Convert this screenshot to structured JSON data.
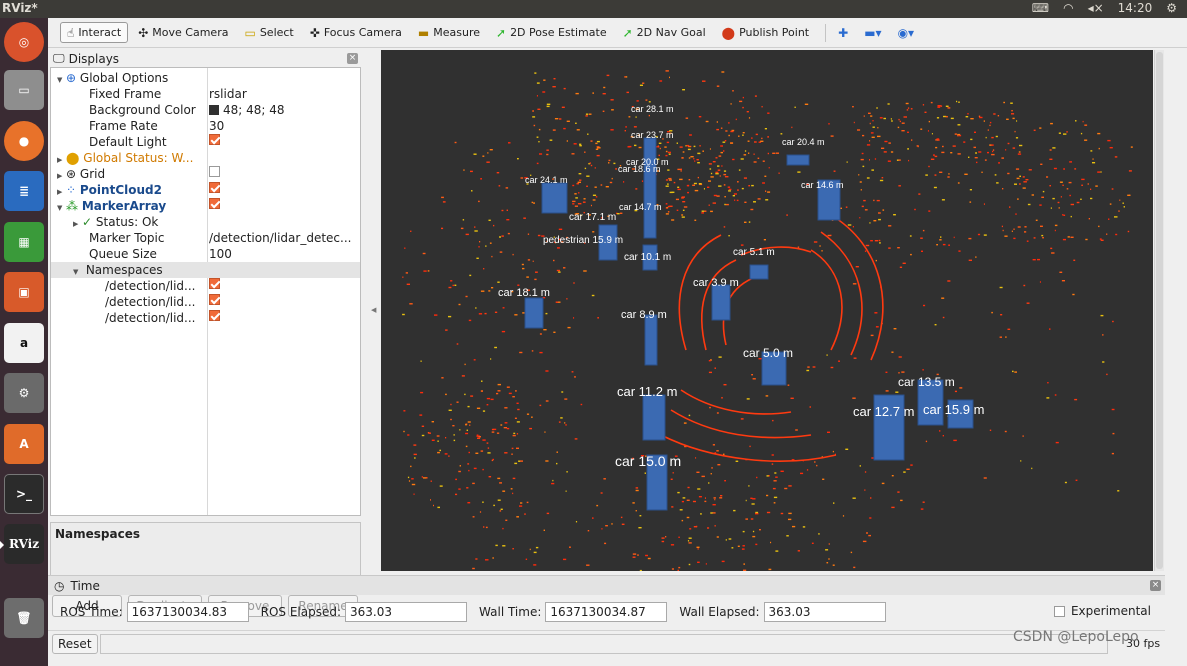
{
  "app": {
    "title": "RViz*",
    "clock": "14:20"
  },
  "toolbar": {
    "tools": [
      {
        "label": "Interact",
        "icon": "hand-pointer-icon",
        "active": true
      },
      {
        "label": "Move Camera",
        "icon": "move-camera-icon"
      },
      {
        "label": "Select",
        "icon": "select-rect-icon"
      },
      {
        "label": "Focus Camera",
        "icon": "focus-camera-icon"
      },
      {
        "label": "Measure",
        "icon": "ruler-icon"
      },
      {
        "label": "2D Pose Estimate",
        "icon": "green-arrow-icon"
      },
      {
        "label": "2D Nav Goal",
        "icon": "green-arrow-icon"
      },
      {
        "label": "Publish Point",
        "icon": "map-pin-icon"
      }
    ]
  },
  "displays": {
    "header": "Displays",
    "global_options": "Global Options",
    "fixed_frame_label": "Fixed Frame",
    "fixed_frame": "rslidar",
    "background_color_label": "Background Color",
    "background_color": "48; 48; 48",
    "frame_rate_label": "Frame Rate",
    "frame_rate": "30",
    "default_light_label": "Default Light",
    "global_status": "Global Status: W...",
    "grid": "Grid",
    "pointcloud": "PointCloud2",
    "markerarray": "MarkerArray",
    "status_ok": "Status: Ok",
    "marker_topic_label": "Marker Topic",
    "marker_topic": "/detection/lidar_detec...",
    "queue_size_label": "Queue Size",
    "queue_size": "100",
    "namespaces_label": "Namespaces",
    "ns_items": [
      "/detection/lid...",
      "/detection/lid...",
      "/detection/lid..."
    ],
    "desc_title": "Namespaces",
    "buttons": {
      "add": "Add",
      "duplicate": "Duplicate",
      "remove": "Remove",
      "rename": "Rename"
    }
  },
  "time": {
    "header": "Time",
    "ros_time_label": "ROS Time:",
    "ros_time": "1637130034.83",
    "ros_elapsed_label": "ROS Elapsed:",
    "ros_elapsed": "363.03",
    "wall_time_label": "Wall Time:",
    "wall_time": "1637130034.87",
    "wall_elapsed_label": "Wall Elapsed:",
    "wall_elapsed": "363.03",
    "experimental": "Experimental"
  },
  "status": {
    "reset": "Reset",
    "fps": "30 fps"
  },
  "watermark": "CSDN @LepoLepo",
  "scene": {
    "labels": [
      "car 28.1 m",
      "car 23.7 m",
      "car 20.0 m",
      "car 18.6 m",
      "car 20.4 m",
      "car 24.1 m",
      "car 14.7 m",
      "car 14.6 m",
      "car 17.1 m",
      "pedestrian 15.9 m",
      "car 10.1 m",
      "car 5.1 m",
      "car 3.9 m",
      "car 18.1 m",
      "car 8.9 m",
      "car 5.0 m",
      "car 11.2 m",
      "car 13.5 m",
      "car 12.7 m",
      "car 15.9 m",
      "car 15.0 m"
    ]
  },
  "colors": {
    "viewport_bg": "#303030",
    "box": "#3b6ab2",
    "points": "#ff3a10",
    "accent": "#f06b39"
  }
}
